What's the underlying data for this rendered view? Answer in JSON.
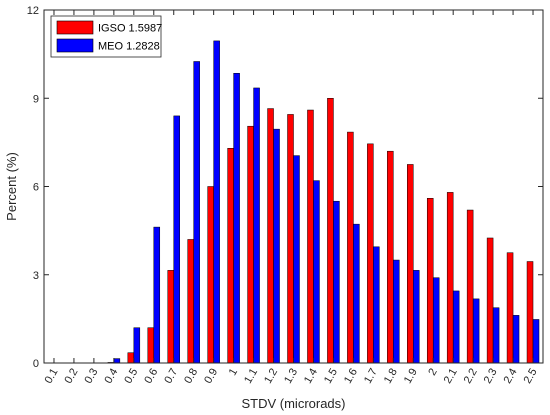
{
  "chart_data": {
    "type": "bar",
    "xlabel": "STDV (microrads)",
    "ylabel": "Percent (%)",
    "categories": [
      "0.1",
      "0.2",
      "0.3",
      "0.4",
      "0.5",
      "0.6",
      "0.7",
      "0.8",
      "0.9",
      "1",
      "1.1",
      "1.2",
      "1.3",
      "1.4",
      "1.5",
      "1.6",
      "1.7",
      "1.8",
      "1.9",
      "2",
      "2.1",
      "2.2",
      "2.3",
      "2.4",
      "2.5"
    ],
    "ylim": [
      0,
      12
    ],
    "yticks": [
      "0",
      "3",
      "6",
      "9",
      "12"
    ],
    "legend_position": "top-left",
    "grid": false,
    "series": [
      {
        "name": "IGSO 1.5987",
        "color": "#ff0000",
        "values": [
          0,
          0,
          0,
          0.02,
          0.35,
          1.2,
          3.15,
          4.2,
          6.0,
          7.3,
          8.05,
          8.65,
          8.45,
          8.6,
          9.0,
          7.85,
          7.45,
          7.2,
          6.75,
          5.6,
          5.8,
          5.2,
          4.25,
          3.75,
          3.45
        ]
      },
      {
        "name": "MEO 1.2828",
        "color": "#0000ff",
        "values": [
          0,
          0,
          0,
          0.15,
          1.2,
          4.62,
          8.4,
          10.25,
          10.95,
          9.85,
          9.35,
          7.95,
          7.05,
          6.2,
          5.5,
          4.72,
          3.95,
          3.5,
          3.15,
          2.9,
          2.45,
          2.18,
          1.88,
          1.62,
          1.48
        ]
      }
    ]
  }
}
